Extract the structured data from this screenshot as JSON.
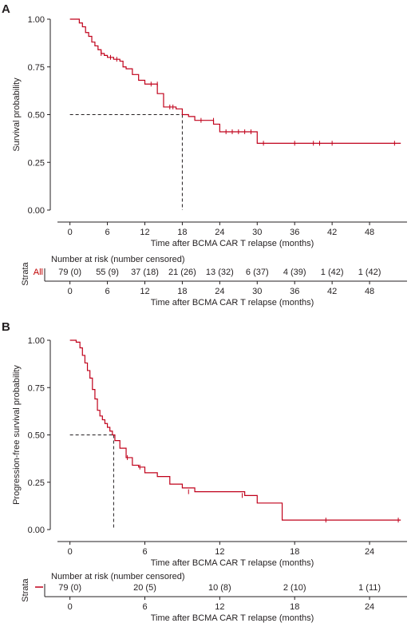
{
  "colors": {
    "curve": "#c0001a",
    "axis": "#231f20",
    "reference": "#231f20"
  },
  "panels": [
    {
      "letter": "A",
      "chart_data": {
        "type": "line",
        "ylabel": "Survival probability",
        "xlabel": "Time after BCMA CAR T relapse (months)",
        "xlim": [
          -2,
          54
        ],
        "ylim": [
          0,
          1
        ],
        "x_ticks": [
          0,
          6,
          12,
          18,
          24,
          30,
          36,
          42,
          48
        ],
        "y_ticks": [
          "0.00",
          "0.25",
          "0.50",
          "0.75",
          "1.00"
        ],
        "median": {
          "x": 18,
          "y": 0.5
        },
        "series": [
          {
            "step_x": [
              0,
              1.5,
              2,
              2.5,
              3,
              3.5,
              4,
              4.5,
              5,
              5.5,
              6,
              7,
              8,
              8.5,
              9,
              10,
              11,
              12,
              13,
              14,
              15,
              17,
              18,
              19,
              20,
              21,
              23,
              24,
              25,
              30,
              53
            ],
            "step_y": [
              1.0,
              0.98,
              0.96,
              0.93,
              0.91,
              0.88,
              0.86,
              0.84,
              0.82,
              0.81,
              0.8,
              0.79,
              0.78,
              0.75,
              0.74,
              0.71,
              0.68,
              0.66,
              0.66,
              0.61,
              0.54,
              0.53,
              0.5,
              0.49,
              0.47,
              0.47,
              0.45,
              0.41,
              0.41,
              0.35,
              0.35
            ],
            "censor_x": [
              5,
              6.5,
              7.5,
              13,
              14,
              16,
              16.5,
              21,
              23,
              25,
              26,
              27,
              28,
              29,
              31,
              36,
              39,
              40,
              42,
              52
            ],
            "censor_y": [
              0.82,
              0.8,
              0.79,
              0.66,
              0.66,
              0.54,
              0.54,
              0.47,
              0.47,
              0.41,
              0.41,
              0.41,
              0.41,
              0.41,
              0.35,
              0.35,
              0.35,
              0.35,
              0.35,
              0.35
            ]
          }
        ]
      },
      "risk_table": {
        "header": "Number at risk (number censored)",
        "strata_title": "Strata",
        "strata_label": "All",
        "values": [
          "79 (0)",
          "55 (9)",
          "37 (18)",
          "21 (26)",
          "13 (32)",
          "6 (37)",
          "4 (39)",
          "1 (42)",
          "1 (42)"
        ],
        "x_ticks": [
          0,
          6,
          12,
          18,
          24,
          30,
          36,
          42,
          48
        ],
        "xlabel": "Time after BCMA CAR T relapse (months)"
      }
    },
    {
      "letter": "B",
      "chart_data": {
        "type": "line",
        "ylabel": "Progression-free survival probability",
        "xlabel": "Time after BCMA CAR T relapse (months)",
        "xlim": [
          -1,
          27
        ],
        "ylim": [
          0,
          1
        ],
        "x_ticks": [
          0,
          6,
          12,
          18,
          24
        ],
        "y_ticks": [
          "0.00",
          "0.25",
          "0.50",
          "0.75",
          "1.00"
        ],
        "median": {
          "x": 3.5,
          "y": 0.5
        },
        "series": [
          {
            "step_x": [
              0,
              0.5,
              0.8,
              1.0,
              1.2,
              1.4,
              1.6,
              1.8,
              2.0,
              2.2,
              2.4,
              2.6,
              2.8,
              3.0,
              3.2,
              3.4,
              3.6,
              4.0,
              4.5,
              5.0,
              5.5,
              6.0,
              7.0,
              8.0,
              9.0,
              10.0,
              14.0,
              15.0,
              17.0,
              26.5
            ],
            "step_y": [
              1.0,
              0.99,
              0.96,
              0.92,
              0.88,
              0.84,
              0.8,
              0.74,
              0.69,
              0.63,
              0.6,
              0.58,
              0.56,
              0.54,
              0.52,
              0.5,
              0.47,
              0.43,
              0.38,
              0.34,
              0.33,
              0.3,
              0.28,
              0.24,
              0.22,
              0.2,
              0.18,
              0.14,
              0.05,
              0.05
            ],
            "censor_x": [
              4.6,
              5.6,
              9.5,
              13.8,
              20.5,
              26.3
            ],
            "censor_y": [
              0.38,
              0.33,
              0.2,
              0.18,
              0.05,
              0.05
            ]
          }
        ]
      },
      "risk_table": {
        "header": "Number at risk (number censored)",
        "strata_title": "Strata",
        "strata_label": "",
        "values": [
          "79 (0)",
          "20 (5)",
          "10 (8)",
          "2 (10)",
          "1 (11)"
        ],
        "x_ticks": [
          0,
          6,
          12,
          18,
          24
        ],
        "xlabel": "Time after BCMA CAR T relapse (months)"
      }
    }
  ]
}
